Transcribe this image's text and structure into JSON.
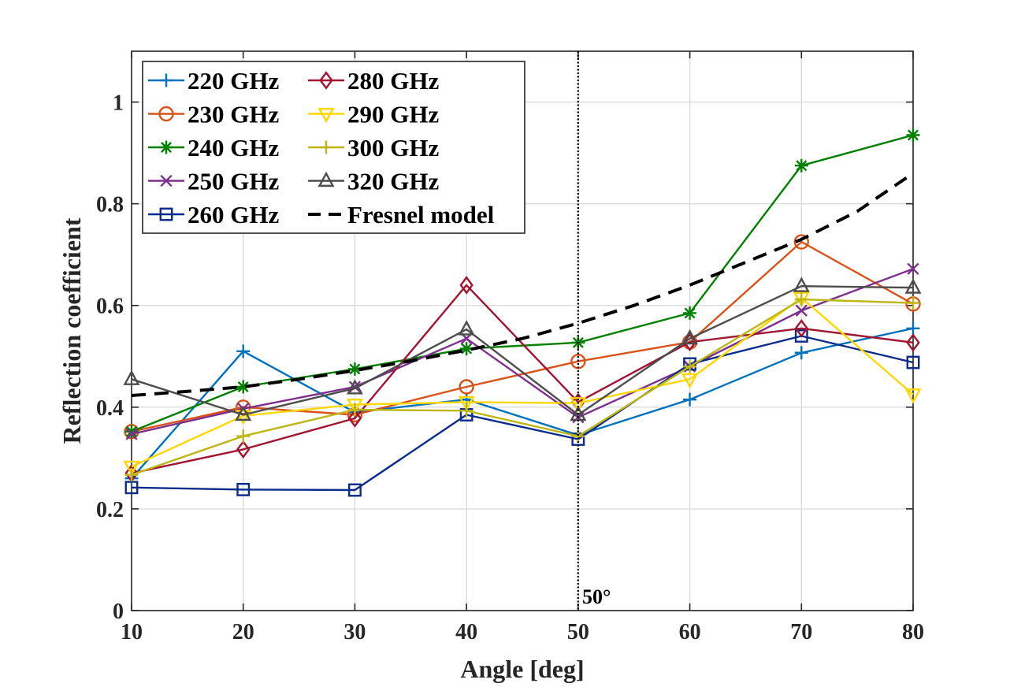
{
  "chart_data": {
    "type": "line",
    "title": "",
    "xlabel": "Angle [deg]",
    "ylabel": "Reflection coefficient",
    "xlim": [
      10,
      80
    ],
    "ylim": [
      0,
      1.1
    ],
    "xticks": [
      10,
      20,
      30,
      40,
      50,
      60,
      70,
      80
    ],
    "yticks": [
      0,
      0.2,
      0.4,
      0.6,
      0.8,
      1
    ],
    "xtick_labels": [
      "10",
      "20",
      "30",
      "40",
      "50",
      "60",
      "70",
      "80"
    ],
    "ytick_labels": [
      "0",
      "0.2",
      "0.4",
      "0.6",
      "0.8",
      "1"
    ],
    "grid": true,
    "legend_position": "top-left",
    "x": [
      10,
      20,
      30,
      40,
      50,
      60,
      70,
      80
    ],
    "series": [
      {
        "name": "220 GHz",
        "marker": "plus",
        "color": "#0072BD",
        "values": [
          0.26,
          0.51,
          0.39,
          0.415,
          0.345,
          0.415,
          0.507,
          0.555
        ]
      },
      {
        "name": "230 GHz",
        "marker": "circle",
        "color": "#D95319",
        "values": [
          0.352,
          0.4,
          0.385,
          0.44,
          0.49,
          0.528,
          0.725,
          0.603
        ]
      },
      {
        "name": "240 GHz",
        "marker": "asterisk",
        "color": "#008000",
        "values": [
          0.352,
          0.44,
          0.475,
          0.515,
          0.527,
          0.585,
          0.875,
          0.935
        ]
      },
      {
        "name": "250 GHz",
        "marker": "x",
        "color": "#7E2F8E",
        "values": [
          0.347,
          0.397,
          0.44,
          0.535,
          0.38,
          0.48,
          0.59,
          0.672
        ]
      },
      {
        "name": "260 GHz",
        "marker": "square",
        "color": "#0B2C8C",
        "values": [
          0.242,
          0.238,
          0.237,
          0.385,
          0.337,
          0.485,
          0.54,
          0.488
        ]
      },
      {
        "name": "280 GHz",
        "marker": "diamond",
        "color": "#A2142F",
        "values": [
          0.27,
          0.317,
          0.378,
          0.64,
          0.41,
          0.528,
          0.555,
          0.527
        ]
      },
      {
        "name": "290 GHz",
        "marker": "triangle-down",
        "color": "#FFD700",
        "values": [
          0.283,
          0.383,
          0.405,
          0.41,
          0.408,
          0.455,
          0.615,
          0.425
        ]
      },
      {
        "name": "300 GHz",
        "marker": "plus",
        "color": "#BDB615",
        "values": [
          0.267,
          0.343,
          0.395,
          0.393,
          0.343,
          0.48,
          0.612,
          0.605
        ]
      },
      {
        "name": "320 GHz",
        "marker": "triangle-up",
        "color": "#4D4D4D",
        "values": [
          0.455,
          0.385,
          0.437,
          0.553,
          0.385,
          0.535,
          0.638,
          0.635
        ]
      }
    ],
    "model": {
      "name": "Fresnel model",
      "color": "#000000",
      "style": "dashed",
      "x": [
        10,
        15,
        20,
        25,
        30,
        35,
        40,
        45,
        50,
        55,
        60,
        65,
        70,
        75,
        80
      ],
      "values": [
        0.423,
        0.431,
        0.44,
        0.455,
        0.472,
        0.491,
        0.512,
        0.535,
        0.565,
        0.6,
        0.64,
        0.685,
        0.73,
        0.785,
        0.86
      ]
    },
    "vline": {
      "x": 50,
      "label": "50°",
      "style": "dotted"
    }
  }
}
